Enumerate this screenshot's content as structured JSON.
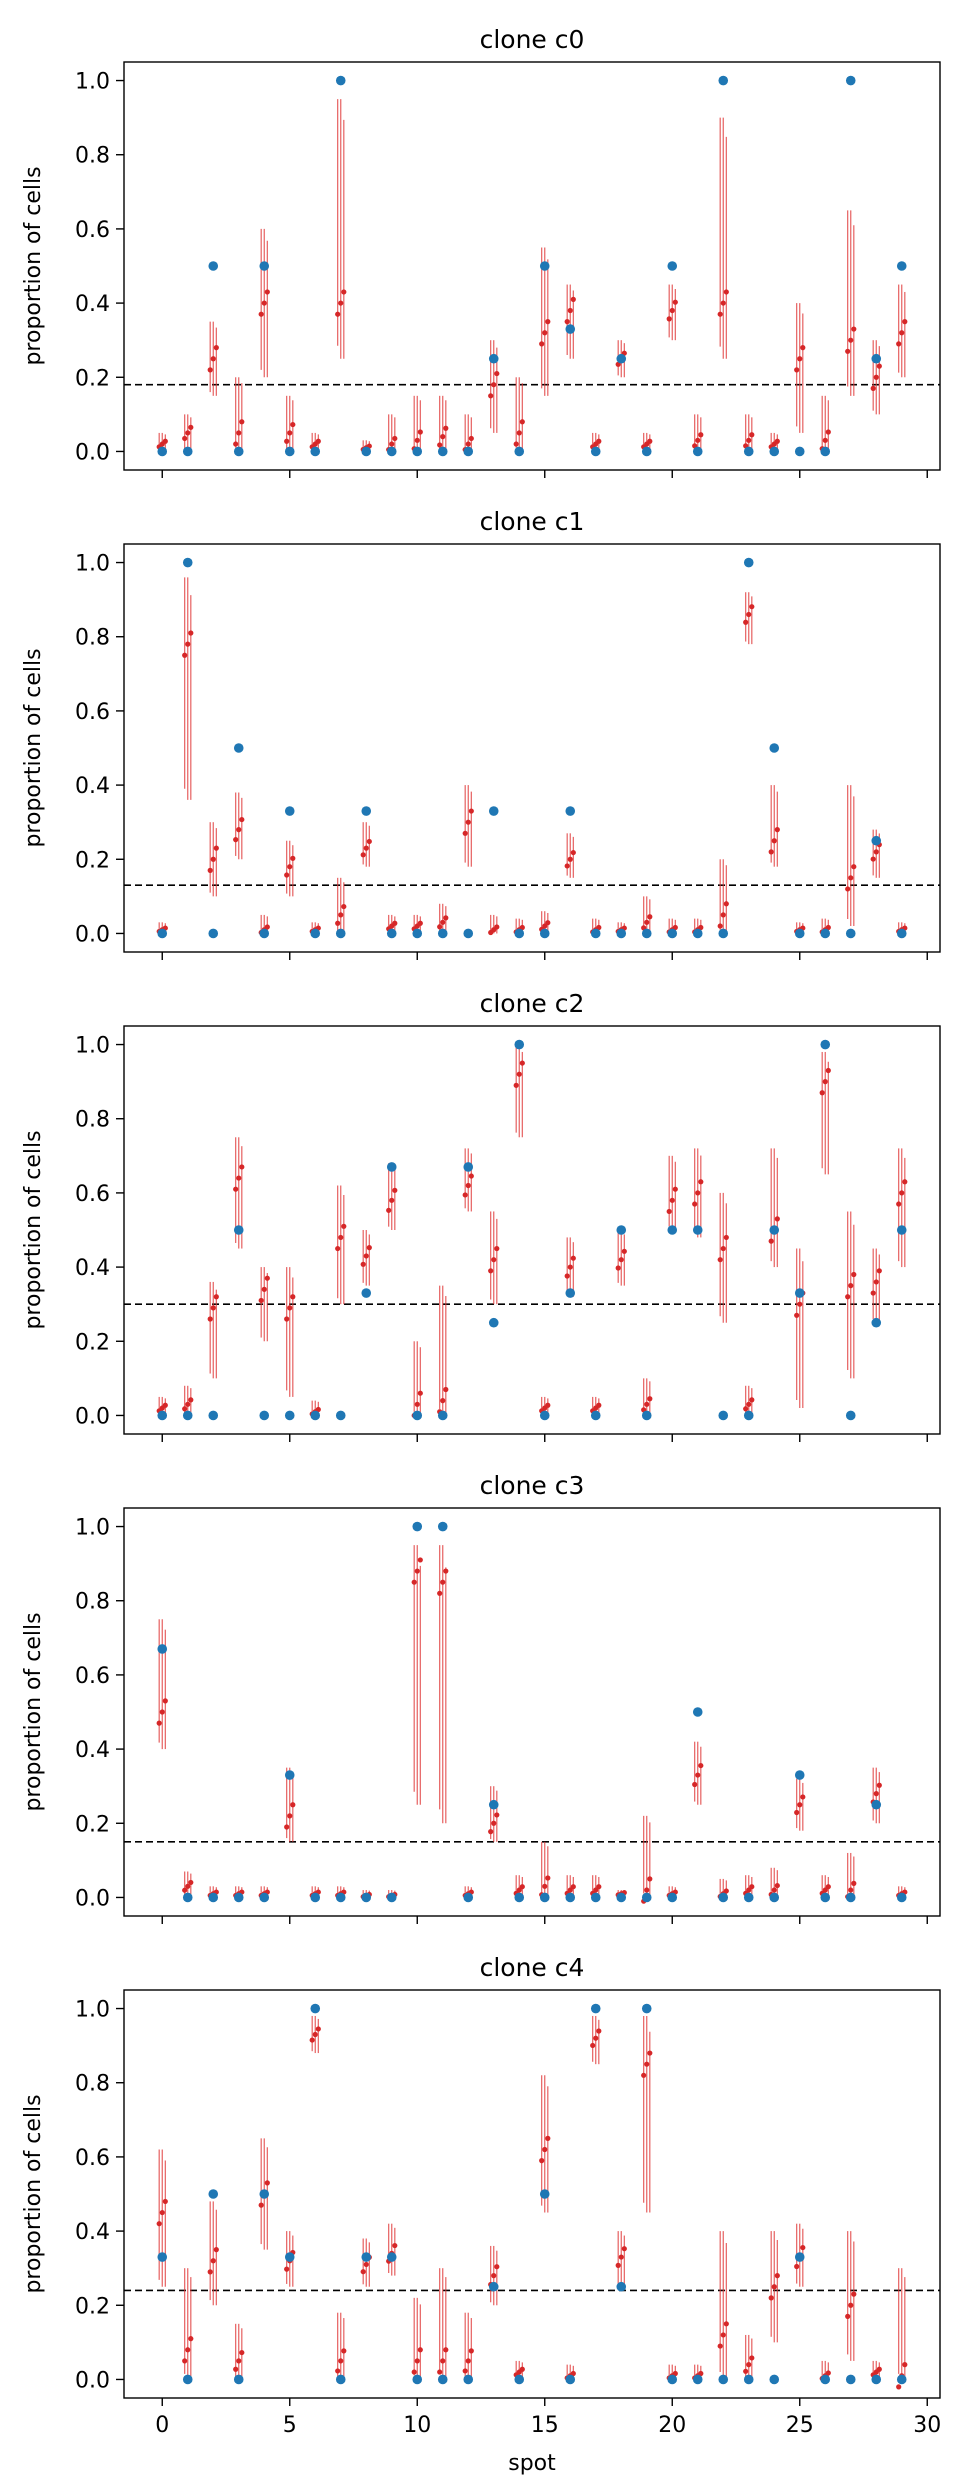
{
  "chart_data": {
    "type": "scatter",
    "xlabel": "spot",
    "ylabel": "proportion of cells",
    "xlim": [
      -1.5,
      30.5
    ],
    "ylim": [
      -0.05,
      1.05
    ],
    "xticks": [
      0,
      5,
      10,
      15,
      20,
      25,
      30
    ],
    "yticks": [
      0.0,
      0.2,
      0.4,
      0.6,
      0.8,
      1.0
    ],
    "colors": {
      "true_value": "#1f77b4",
      "estimate": "#d62728",
      "interval": "#e03838",
      "reference_line": "#000000"
    },
    "spots": [
      0,
      1,
      2,
      3,
      4,
      5,
      6,
      7,
      8,
      9,
      10,
      11,
      12,
      13,
      14,
      15,
      16,
      17,
      18,
      19,
      20,
      21,
      22,
      23,
      24,
      25,
      26,
      27,
      28,
      29
    ],
    "panels": [
      {
        "title": "clone c0",
        "reference_line": 0.18,
        "true_values": [
          0,
          0,
          0.5,
          0,
          0.5,
          0,
          0,
          1.0,
          0,
          0,
          0,
          0,
          0,
          0.25,
          0,
          0.5,
          0.33,
          0,
          0.25,
          0,
          0.5,
          0,
          1.0,
          0,
          0,
          0,
          0,
          1.0,
          0.25,
          0.5
        ],
        "estimates": [
          0.02,
          0.05,
          0.25,
          0.05,
          0.4,
          0.05,
          0.02,
          0.4,
          0.01,
          0.02,
          0.03,
          0.04,
          0.02,
          0.18,
          0.05,
          0.32,
          0.38,
          0.02,
          0.25,
          0.02,
          0.38,
          0.03,
          0.4,
          0.03,
          0.02,
          0.25,
          0.03,
          0.3,
          0.2,
          0.32
        ],
        "intervals": [
          [
            0,
            0.05
          ],
          [
            0,
            0.1
          ],
          [
            0.15,
            0.35
          ],
          [
            0,
            0.2
          ],
          [
            0.2,
            0.6
          ],
          [
            0,
            0.15
          ],
          [
            0,
            0.05
          ],
          [
            0.25,
            0.95
          ],
          [
            0,
            0.03
          ],
          [
            0,
            0.1
          ],
          [
            0,
            0.15
          ],
          [
            0,
            0.15
          ],
          [
            0,
            0.1
          ],
          [
            0.05,
            0.3
          ],
          [
            0,
            0.2
          ],
          [
            0.15,
            0.55
          ],
          [
            0.25,
            0.45
          ],
          [
            0,
            0.05
          ],
          [
            0.2,
            0.3
          ],
          [
            0,
            0.05
          ],
          [
            0.3,
            0.45
          ],
          [
            0,
            0.1
          ],
          [
            0.25,
            0.9
          ],
          [
            0,
            0.1
          ],
          [
            0,
            0.05
          ],
          [
            0.05,
            0.4
          ],
          [
            0,
            0.15
          ],
          [
            0.15,
            0.65
          ],
          [
            0.1,
            0.3
          ],
          [
            0.2,
            0.45
          ]
        ]
      },
      {
        "title": "clone c1",
        "reference_line": 0.13,
        "true_values": [
          0,
          1.0,
          0,
          0.5,
          0,
          0.33,
          0,
          0,
          0.33,
          0,
          0,
          0,
          0,
          0.33,
          0,
          0,
          0.33,
          0,
          0,
          0,
          0,
          0,
          0,
          1.0,
          0.5,
          0,
          0,
          0,
          0.25,
          0
        ],
        "estimates": [
          0.01,
          0.78,
          0.2,
          0.28,
          0.01,
          0.18,
          0.01,
          0.05,
          0.23,
          0.02,
          0.02,
          0.03,
          0.3,
          0.01,
          0.01,
          0.02,
          0.2,
          0.01,
          0.01,
          0.03,
          0.01,
          0.01,
          0.05,
          0.86,
          0.25,
          0.01,
          0.01,
          0.15,
          0.22,
          0.01
        ],
        "intervals": [
          [
            0,
            0.03
          ],
          [
            0.36,
            0.96
          ],
          [
            0.1,
            0.3
          ],
          [
            0.2,
            0.38
          ],
          [
            0,
            0.05
          ],
          [
            0.1,
            0.25
          ],
          [
            0,
            0.03
          ],
          [
            0,
            0.15
          ],
          [
            0.18,
            0.3
          ],
          [
            0,
            0.05
          ],
          [
            0,
            0.05
          ],
          [
            0,
            0.08
          ],
          [
            0.18,
            0.4
          ],
          [
            0,
            0.05
          ],
          [
            0,
            0.04
          ],
          [
            0,
            0.06
          ],
          [
            0.15,
            0.27
          ],
          [
            0,
            0.04
          ],
          [
            0,
            0.03
          ],
          [
            0,
            0.1
          ],
          [
            0,
            0.04
          ],
          [
            0,
            0.04
          ],
          [
            0,
            0.2
          ],
          [
            0.78,
            0.92
          ],
          [
            0.18,
            0.4
          ],
          [
            0,
            0.03
          ],
          [
            0,
            0.04
          ],
          [
            0.02,
            0.4
          ],
          [
            0.15,
            0.28
          ],
          [
            0,
            0.03
          ]
        ]
      },
      {
        "title": "clone c2",
        "reference_line": 0.3,
        "true_values": [
          0,
          0,
          0,
          0.5,
          0,
          0,
          0,
          0,
          0.33,
          0.67,
          0,
          0,
          0.67,
          0.25,
          1.0,
          0,
          0.33,
          0,
          0.5,
          0,
          0.5,
          0.5,
          0,
          0,
          0.5,
          0.33,
          1.0,
          0,
          0.25,
          0.5
        ],
        "estimates": [
          0.02,
          0.03,
          0.29,
          0.64,
          0.34,
          0.29,
          0.01,
          0.48,
          0.43,
          0.58,
          0.03,
          0.04,
          0.62,
          0.42,
          0.92,
          0.02,
          0.4,
          0.02,
          0.42,
          0.03,
          0.58,
          0.6,
          0.45,
          0.03,
          0.5,
          0.3,
          0.9,
          0.35,
          0.36,
          0.6
        ],
        "intervals": [
          [
            0,
            0.05
          ],
          [
            0,
            0.08
          ],
          [
            0.1,
            0.36
          ],
          [
            0.45,
            0.75
          ],
          [
            0.2,
            0.4
          ],
          [
            0.05,
            0.4
          ],
          [
            0,
            0.04
          ],
          [
            0.3,
            0.62
          ],
          [
            0.35,
            0.5
          ],
          [
            0.5,
            0.68
          ],
          [
            0,
            0.2
          ],
          [
            0,
            0.35
          ],
          [
            0.55,
            0.72
          ],
          [
            0.3,
            0.55
          ],
          [
            0.75,
            1.0
          ],
          [
            0,
            0.05
          ],
          [
            0.32,
            0.48
          ],
          [
            0,
            0.05
          ],
          [
            0.35,
            0.5
          ],
          [
            0,
            0.1
          ],
          [
            0.5,
            0.7
          ],
          [
            0.48,
            0.72
          ],
          [
            0.25,
            0.6
          ],
          [
            0,
            0.08
          ],
          [
            0.4,
            0.72
          ],
          [
            0.02,
            0.45
          ],
          [
            0.65,
            0.98
          ],
          [
            0.1,
            0.55
          ],
          [
            0.25,
            0.45
          ],
          [
            0.4,
            0.72
          ]
        ]
      },
      {
        "title": "clone c3",
        "reference_line": 0.15,
        "true_values": [
          0.67,
          0,
          0,
          0,
          0,
          0.33,
          0,
          0,
          0,
          0,
          1.0,
          1.0,
          0,
          0.25,
          0,
          0,
          0,
          0,
          0,
          0,
          0,
          0.5,
          0,
          0,
          0,
          0.33,
          0,
          0,
          0.25,
          0
        ],
        "estimates": [
          0.5,
          0.03,
          0.01,
          0.01,
          0.01,
          0.22,
          0.01,
          0.01,
          0.005,
          0.005,
          0.88,
          0.85,
          0.01,
          0.2,
          0.02,
          0.03,
          0.02,
          0.02,
          0.01,
          0.02,
          0.01,
          0.33,
          0.01,
          0.02,
          0.02,
          0.25,
          0.02,
          0.02,
          0.28,
          0.01
        ],
        "intervals": [
          [
            0.4,
            0.75
          ],
          [
            0,
            0.07
          ],
          [
            0,
            0.03
          ],
          [
            0,
            0.03
          ],
          [
            0,
            0.03
          ],
          [
            0.15,
            0.35
          ],
          [
            0,
            0.03
          ],
          [
            0,
            0.03
          ],
          [
            0,
            0.02
          ],
          [
            0,
            0.02
          ],
          [
            0.25,
            0.95
          ],
          [
            0.2,
            0.95
          ],
          [
            0,
            0.03
          ],
          [
            0.15,
            0.3
          ],
          [
            0,
            0.06
          ],
          [
            0,
            0.15
          ],
          [
            0,
            0.06
          ],
          [
            0,
            0.06
          ],
          [
            0,
            0.02
          ],
          [
            0,
            0.22
          ],
          [
            0,
            0.03
          ],
          [
            0.25,
            0.42
          ],
          [
            0,
            0.05
          ],
          [
            0,
            0.06
          ],
          [
            0,
            0.08
          ],
          [
            0.18,
            0.32
          ],
          [
            0,
            0.06
          ],
          [
            0,
            0.12
          ],
          [
            0.2,
            0.35
          ],
          [
            0,
            0.03
          ]
        ]
      },
      {
        "title": "clone c4",
        "reference_line": 0.24,
        "true_values": [
          0.33,
          0,
          0.5,
          0,
          0.5,
          0.33,
          1.0,
          0,
          0.33,
          0.33,
          0,
          0,
          0,
          0.25,
          0,
          0.5,
          0,
          1.0,
          0.25,
          1.0,
          0,
          0,
          0,
          0,
          0,
          0.33,
          0,
          0,
          0,
          0
        ],
        "estimates": [
          0.45,
          0.08,
          0.32,
          0.05,
          0.5,
          0.32,
          0.93,
          0.05,
          0.31,
          0.34,
          0.05,
          0.05,
          0.05,
          0.28,
          0.02,
          0.62,
          0.01,
          0.92,
          0.33,
          0.85,
          0.01,
          0.01,
          0.12,
          0.04,
          0.25,
          0.33,
          0.01,
          0.2,
          0.02,
          0.01
        ],
        "intervals": [
          [
            0.25,
            0.62
          ],
          [
            0,
            0.3
          ],
          [
            0.2,
            0.48
          ],
          [
            0,
            0.15
          ],
          [
            0.35,
            0.65
          ],
          [
            0.25,
            0.4
          ],
          [
            0.88,
            0.98
          ],
          [
            0,
            0.18
          ],
          [
            0.25,
            0.38
          ],
          [
            0.28,
            0.42
          ],
          [
            0,
            0.22
          ],
          [
            0,
            0.3
          ],
          [
            0,
            0.18
          ],
          [
            0.2,
            0.36
          ],
          [
            0,
            0.05
          ],
          [
            0.45,
            0.82
          ],
          [
            0,
            0.04
          ],
          [
            0.85,
            0.98
          ],
          [
            0.25,
            0.4
          ],
          [
            0.45,
            0.98
          ],
          [
            0,
            0.04
          ],
          [
            0,
            0.04
          ],
          [
            0,
            0.4
          ],
          [
            0,
            0.12
          ],
          [
            0.1,
            0.4
          ],
          [
            0.25,
            0.42
          ],
          [
            0,
            0.05
          ],
          [
            0.05,
            0.4
          ],
          [
            0,
            0.05
          ],
          [
            0,
            0.3
          ]
        ]
      }
    ]
  }
}
